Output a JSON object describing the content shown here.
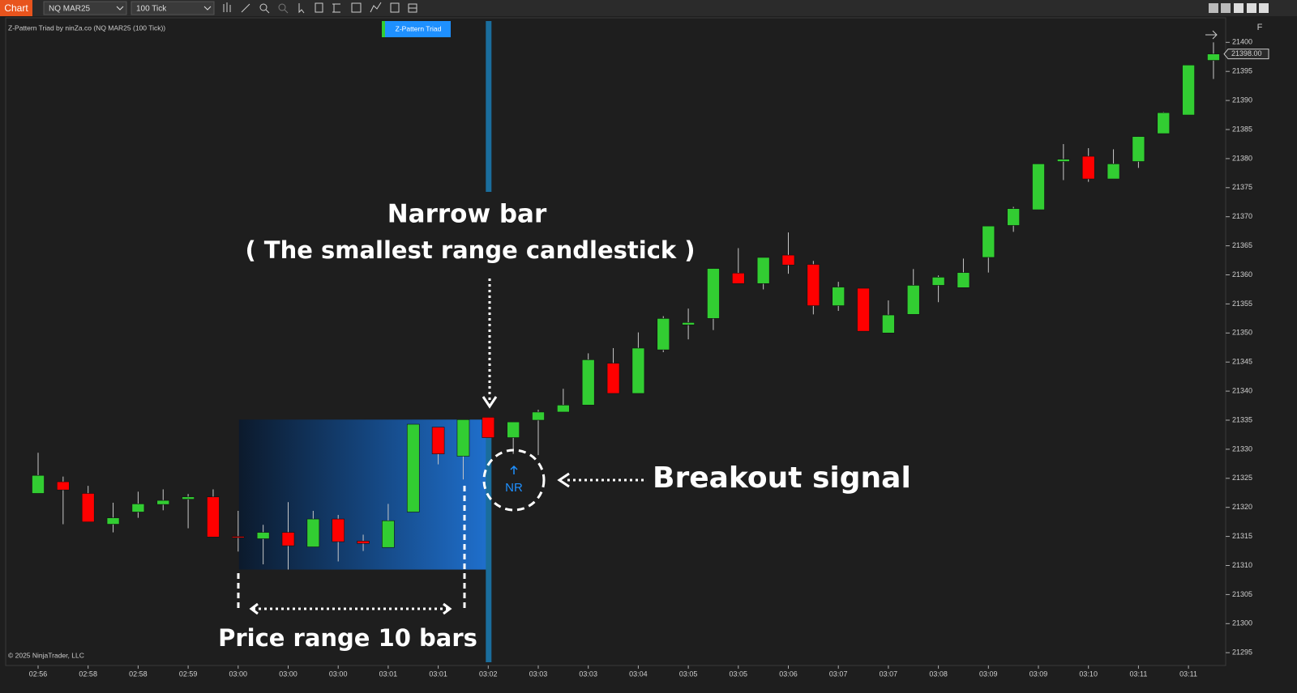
{
  "toolbar": {
    "tab": "Chart",
    "instrument": "NQ MAR25",
    "interval": "100 Tick"
  },
  "window_letter": "F",
  "chart_data": {
    "type": "candlestick",
    "title": "Z-Pattern Triad by ninZa.co (NQ MAR25 (100 Tick))",
    "indicator_label": "Z-Pattern Triad",
    "copyright": "© 2025 NinjaTrader, LLC",
    "categories": [
      "02:56",
      null,
      "02:58",
      null,
      "02:58",
      null,
      "02:59",
      null,
      "03:00",
      null,
      "03:00",
      null,
      "03:00",
      null,
      "03:01",
      null,
      "03:01",
      null,
      "03:02",
      null,
      "03:03",
      null,
      "03:03",
      null,
      "03:04",
      null,
      "03:05",
      null,
      "03:05",
      null,
      "03:06",
      null,
      "03:07",
      null,
      "03:07",
      null,
      "03:08",
      null,
      "03:09",
      null,
      "03:09",
      null,
      "03:10",
      null,
      "03:11",
      null,
      "03:11",
      null
    ],
    "open": [
      21322.4,
      21324.4,
      21322.4,
      21317.1,
      21319.2,
      21320.5,
      21321.4,
      21321.8,
      21315.0,
      21314.6,
      21315.7,
      21313.2,
      21318.0,
      21314.2,
      21313.1,
      21319.2,
      21333.8,
      21328.8,
      21335.5,
      21332.0,
      21335.0,
      21336.4,
      21337.6,
      21344.8,
      21339.6,
      21347.1,
      21351.4,
      21352.5,
      21360.3,
      21358.5,
      21363.4,
      21361.8,
      21354.7,
      21357.7,
      21350.0,
      21353.2,
      21358.2,
      21357.8,
      21363.0,
      21368.5,
      21371.2,
      21379.5,
      21380.4,
      21376.5,
      21379.5,
      21384.3,
      21387.5,
      21396.9
    ],
    "high": [
      21329.4,
      21325.3,
      21323.7,
      21320.8,
      21322.7,
      21323.1,
      21322.3,
      21323.1,
      21319.4,
      21317.0,
      21320.9,
      21319.4,
      21318.7,
      21315.3,
      21320.6,
      21334.3,
      21333.8,
      21335.1,
      21335.5,
      21334.7,
      21336.8,
      21340.4,
      21346.5,
      21347.4,
      21350.1,
      21352.9,
      21354.2,
      21361.1,
      21364.6,
      21363.0,
      21367.3,
      21362.4,
      21358.8,
      21357.7,
      21355.6,
      21361.0,
      21359.9,
      21362.8,
      21368.4,
      21371.7,
      21379.1,
      21382.5,
      21381.8,
      21381.6,
      21383.8,
      21388.0,
      21396.1,
      21400.0
    ],
    "low": [
      21322.4,
      21317.1,
      21317.5,
      21315.7,
      21318.2,
      21319.5,
      21316.4,
      21314.9,
      21312.4,
      21310.2,
      21309.3,
      21313.2,
      21310.7,
      21312.5,
      21313.1,
      21319.2,
      21327.4,
      21324.8,
      21332.0,
      21329.2,
      21329.0,
      21336.4,
      21337.6,
      21339.6,
      21339.6,
      21346.7,
      21348.9,
      21350.5,
      21358.5,
      21357.5,
      21360.2,
      21353.2,
      21353.8,
      21350.3,
      21350.0,
      21353.2,
      21355.3,
      21357.8,
      21360.4,
      21367.4,
      21371.2,
      21376.3,
      21376.0,
      21376.5,
      21378.4,
      21384.3,
      21387.5,
      21393.7
    ],
    "close": [
      21325.5,
      21323.0,
      21317.5,
      21318.2,
      21320.6,
      21321.2,
      21321.8,
      21314.9,
      21314.8,
      21315.7,
      21313.4,
      21318.0,
      21314.1,
      21313.8,
      21317.7,
      21334.3,
      21329.2,
      21335.1,
      21332.0,
      21334.7,
      21336.4,
      21337.6,
      21345.4,
      21339.6,
      21347.4,
      21352.5,
      21351.8,
      21361.1,
      21358.5,
      21363.0,
      21361.7,
      21354.7,
      21357.9,
      21350.3,
      21353.1,
      21358.2,
      21359.6,
      21360.4,
      21368.4,
      21371.4,
      21379.1,
      21379.9,
      21376.5,
      21379.1,
      21383.8,
      21387.9,
      21396.1,
      21398.0
    ],
    "up_color": "#32cd32",
    "down_color": "#ff0000",
    "ylim": [
      21292.8,
      21404.5
    ],
    "yticks": [
      21295,
      21300,
      21305,
      21310,
      21315,
      21320,
      21325,
      21330,
      21335,
      21340,
      21345,
      21350,
      21355,
      21360,
      21365,
      21370,
      21375,
      21380,
      21385,
      21390,
      21395,
      21400
    ],
    "last_price": {
      "value": 21398,
      "label": "21398.00"
    },
    "range_box": {
      "top": 21335.1,
      "bottom": 21309.3
    },
    "annotations": {
      "narrow_bar": "Narrow bar",
      "narrow_bar_note": "( The smallest range candlestick )",
      "breakout": "Breakout signal",
      "signal": "NR",
      "price_range": "Price range 10 bars"
    }
  }
}
